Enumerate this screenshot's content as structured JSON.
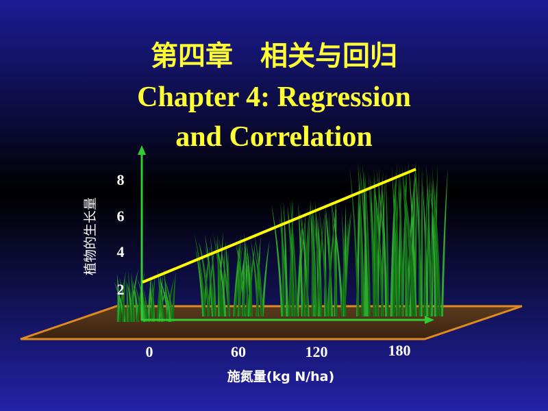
{
  "title": {
    "chinese": "第四章　相关与回归",
    "english_line1": "Chapter 4: Regression",
    "english_line2": "and Correlation"
  },
  "figure": {
    "y_axis_label": "植物的生长量",
    "y_ticks": [
      8,
      6,
      4,
      2
    ],
    "x_ticks": [
      0,
      60,
      120,
      180
    ],
    "x_axis_label": "施氮量(kg N/ha)"
  }
}
